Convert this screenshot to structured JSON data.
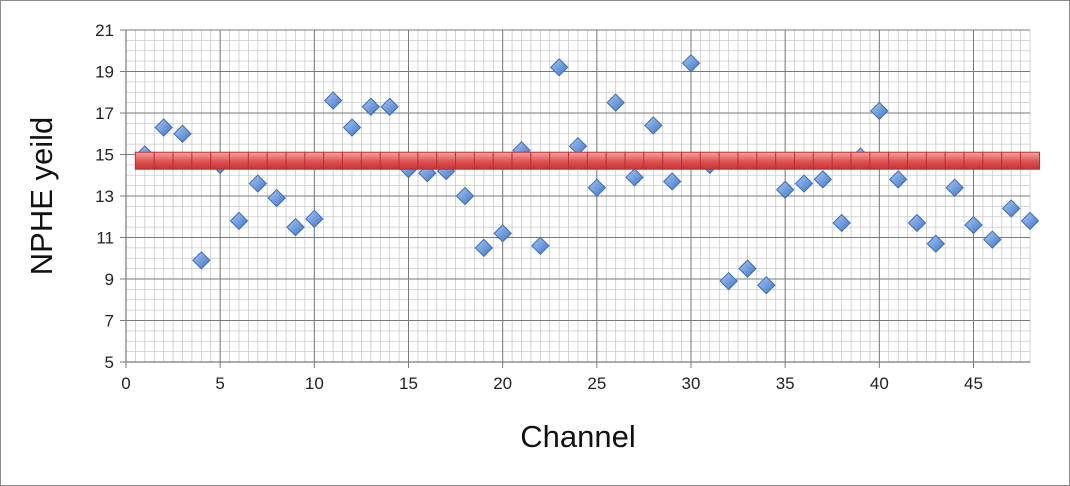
{
  "chart_data": {
    "type": "scatter",
    "xlabel": "Channel",
    "ylabel": "NPHE yeild",
    "xlim": [
      0,
      48
    ],
    "ylim": [
      5,
      21
    ],
    "x_ticks": [
      0,
      5,
      10,
      15,
      20,
      25,
      30,
      35,
      40,
      45
    ],
    "y_ticks": [
      5,
      7,
      9,
      11,
      13,
      15,
      17,
      19,
      21
    ],
    "x_minor_step": 0.5,
    "y_minor_step": 0.5,
    "grid": true,
    "legend": "none",
    "points_color": "#5b8fd9",
    "line_color": "#e04646",
    "series": [
      {
        "marker": "diamond",
        "x": [
          1,
          2,
          3,
          4,
          5,
          6,
          7,
          8,
          9,
          10,
          11,
          12,
          13,
          14,
          15,
          16,
          17,
          18,
          19,
          20,
          21,
          22,
          23,
          24,
          25,
          26,
          27,
          28,
          29,
          30,
          31,
          32,
          33,
          34,
          35,
          36,
          37,
          38,
          39,
          40,
          41,
          42,
          43,
          44,
          45,
          46,
          47,
          48
        ],
        "y": [
          15.0,
          16.3,
          16.0,
          9.9,
          14.5,
          11.8,
          13.6,
          12.9,
          11.5,
          11.9,
          17.6,
          16.3,
          17.3,
          17.3,
          14.3,
          14.1,
          14.2,
          13.0,
          10.5,
          11.2,
          15.2,
          10.6,
          19.2,
          15.4,
          13.4,
          17.5,
          13.9,
          16.4,
          13.7,
          19.4,
          14.5,
          8.9,
          9.5,
          8.7,
          13.3,
          13.6,
          13.8,
          11.7,
          14.9,
          17.1,
          13.8,
          11.7,
          10.7,
          13.4,
          11.6,
          10.9,
          12.4,
          11.8
        ]
      },
      {
        "marker": "square",
        "style": "line",
        "x": [
          1,
          2,
          3,
          4,
          5,
          6,
          7,
          8,
          9,
          10,
          11,
          12,
          13,
          14,
          15,
          16,
          17,
          18,
          19,
          20,
          21,
          22,
          23,
          24,
          25,
          26,
          27,
          28,
          29,
          30,
          31,
          32,
          33,
          34,
          35,
          36,
          37,
          38,
          39,
          40,
          41,
          42,
          43,
          44,
          45,
          46,
          47,
          48
        ],
        "y": [
          14.7,
          14.7,
          14.7,
          14.7,
          14.7,
          14.7,
          14.7,
          14.7,
          14.7,
          14.7,
          14.7,
          14.7,
          14.7,
          14.7,
          14.7,
          14.7,
          14.7,
          14.7,
          14.7,
          14.7,
          14.7,
          14.7,
          14.7,
          14.7,
          14.7,
          14.7,
          14.7,
          14.7,
          14.7,
          14.7,
          14.7,
          14.7,
          14.7,
          14.7,
          14.7,
          14.7,
          14.7,
          14.7,
          14.7,
          14.7,
          14.7,
          14.7,
          14.7,
          14.7,
          14.7,
          14.7,
          14.7,
          14.7
        ]
      }
    ]
  }
}
